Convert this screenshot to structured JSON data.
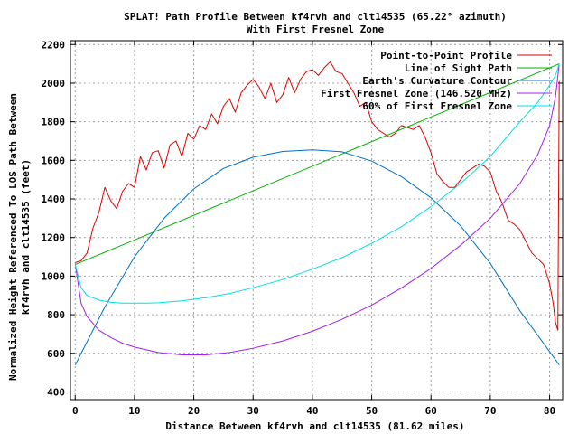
{
  "chart_data": {
    "type": "line",
    "title_line1": "SPLAT! Path Profile Between kf4rvh and clt14535 (65.22° azimuth)",
    "title_line2": "With First Fresnel Zone",
    "xlabel": "Distance Between kf4rvh and clt14535 (81.62 miles)",
    "ylabel_line1": "Normalized Height Referenced To LOS Path Between",
    "ylabel_line2": "kf4rvh and clt14535 (feet)",
    "xlim": [
      -0.8,
      82.2
    ],
    "ylim": [
      360,
      2220
    ],
    "x_ticks": [
      0,
      10,
      20,
      30,
      40,
      50,
      60,
      70,
      80
    ],
    "y_ticks": [
      400,
      600,
      800,
      1000,
      1200,
      1400,
      1600,
      1800,
      2000,
      2200
    ],
    "grid": true,
    "legend_position": "top-right",
    "path_length": 81.62,
    "series": [
      {
        "name": "Point-to-Point Profile",
        "color": "#e00000",
        "x": [
          0,
          1,
          2,
          3,
          4,
          5,
          6,
          7,
          8,
          9,
          10,
          11,
          12,
          13,
          14,
          15,
          16,
          17,
          18,
          19,
          20,
          21,
          22,
          23,
          24,
          25,
          26,
          27,
          28,
          29,
          30,
          31,
          32,
          33,
          34,
          35,
          36,
          37,
          38,
          39,
          40,
          41,
          42,
          43,
          44,
          45,
          46,
          47,
          48,
          49,
          50,
          51,
          52,
          53,
          54,
          55,
          56,
          57,
          58,
          59,
          60,
          61,
          62,
          63,
          64,
          65,
          66,
          67,
          68,
          69,
          70,
          71,
          72,
          73,
          74,
          75,
          76,
          77,
          78,
          79,
          80,
          80.6,
          81,
          81.4,
          81.62
        ],
        "y": [
          1070,
          1080,
          1120,
          1250,
          1330,
          1460,
          1390,
          1350,
          1440,
          1480,
          1460,
          1620,
          1550,
          1640,
          1650,
          1560,
          1680,
          1700,
          1620,
          1740,
          1710,
          1780,
          1760,
          1840,
          1790,
          1880,
          1920,
          1850,
          1950,
          1990,
          2020,
          1980,
          1920,
          2000,
          1900,
          1940,
          2030,
          1950,
          2020,
          2060,
          2070,
          2040,
          2080,
          2110,
          2060,
          2050,
          2000,
          1950,
          1880,
          1900,
          1800,
          1760,
          1740,
          1720,
          1740,
          1780,
          1770,
          1760,
          1780,
          1720,
          1640,
          1530,
          1490,
          1460,
          1460,
          1500,
          1540,
          1560,
          1580,
          1570,
          1540,
          1440,
          1380,
          1290,
          1270,
          1240,
          1180,
          1120,
          1090,
          1060,
          960,
          860,
          760,
          720,
          2010
        ]
      },
      {
        "name": "Line of Sight Path",
        "color": "#00b000",
        "x": [
          0,
          81.62
        ],
        "y": [
          1060,
          2100
        ]
      },
      {
        "name": "Earth's Curvature Contour",
        "color": "#0070c0",
        "x": [
          0,
          5,
          10,
          15,
          20,
          25,
          30,
          35,
          40,
          45,
          50,
          55,
          60,
          65,
          70,
          75,
          81.62
        ],
        "y": [
          540,
          840,
          1100,
          1300,
          1452,
          1558,
          1616,
          1646,
          1654,
          1644,
          1596,
          1516,
          1406,
          1260,
          1066,
          820,
          540
        ]
      },
      {
        "name": "First Fresnel Zone (146.520 MHz)",
        "color": "#a020f0",
        "x": [
          0,
          1,
          2,
          4,
          6,
          8,
          10,
          14,
          18,
          22,
          26,
          30,
          35,
          40,
          45,
          50,
          55,
          60,
          65,
          70,
          75,
          78,
          80,
          81,
          81.62
        ],
        "y": [
          1060,
          860,
          790,
          720,
          682,
          652,
          632,
          604,
          592,
          592,
          604,
          626,
          664,
          714,
          776,
          850,
          938,
          1040,
          1160,
          1300,
          1480,
          1630,
          1780,
          1930,
          2100
        ]
      },
      {
        "name": "60% of First Fresnel Zone",
        "color": "#00e0e0",
        "x": [
          0,
          1,
          2,
          4,
          6,
          8,
          10,
          12,
          14,
          18,
          22,
          26,
          30,
          35,
          40,
          45,
          50,
          55,
          60,
          65,
          70,
          75,
          78,
          80,
          81,
          81.62
        ],
        "y": [
          1060,
          940,
          900,
          876,
          864,
          860,
          860,
          860,
          862,
          872,
          888,
          910,
          940,
          982,
          1036,
          1096,
          1170,
          1256,
          1360,
          1480,
          1620,
          1800,
          1900,
          1990,
          2040,
          2100
        ]
      }
    ]
  }
}
